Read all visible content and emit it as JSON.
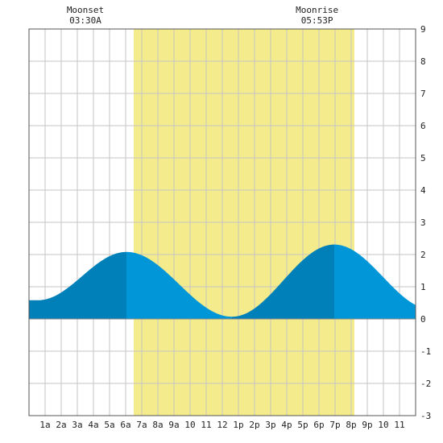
{
  "chart_data": {
    "type": "area",
    "x_range": [
      0,
      24
    ],
    "ylim": [
      -3,
      9
    ],
    "yticks": [
      -3,
      -2,
      -1,
      0,
      1,
      2,
      3,
      4,
      5,
      6,
      7,
      8,
      9
    ],
    "xtick_hours": [
      1,
      2,
      3,
      4,
      5,
      6,
      7,
      8,
      9,
      10,
      11,
      12,
      13,
      14,
      15,
      16,
      17,
      18,
      19,
      20,
      21,
      22,
      23
    ],
    "xtick_labels": [
      "1a",
      "2a",
      "3a",
      "4a",
      "5a",
      "6a",
      "7a",
      "8a",
      "9a",
      "10",
      "11",
      "12",
      "1p",
      "2p",
      "3p",
      "4p",
      "5p",
      "6p",
      "7p",
      "8p",
      "9p",
      "10",
      "11"
    ],
    "grid": true,
    "daylight": {
      "start_hour": 6.5,
      "end_hour": 20.2
    },
    "tide_extremes": [
      {
        "hour": 0.55,
        "height": 0.58,
        "kind": "low"
      },
      {
        "hour": 6.05,
        "height": 2.08,
        "kind": "high"
      },
      {
        "hour": 12.6,
        "height": 0.07,
        "kind": "low"
      },
      {
        "hour": 18.95,
        "height": 2.31,
        "kind": "high"
      },
      {
        "hour": 25.0,
        "height": 0.3,
        "kind": "low"
      }
    ],
    "shade_rule": "darker between each low tide and the following high tide, lighter between each high tide and the following low tide",
    "moon_events": [
      {
        "label": "Moonset",
        "time": "03:30A",
        "hour": 3.5
      },
      {
        "label": "Moonrise",
        "time": "05:53P",
        "hour": 17.88
      }
    ]
  },
  "colors": {
    "background": "#ffffff",
    "daylight": "#f4ec8c",
    "grid": "#c4c4c4",
    "frame": "#555555",
    "tide_dark": "#0080b8",
    "tide_light": "#0096d8",
    "text": "#222222"
  }
}
